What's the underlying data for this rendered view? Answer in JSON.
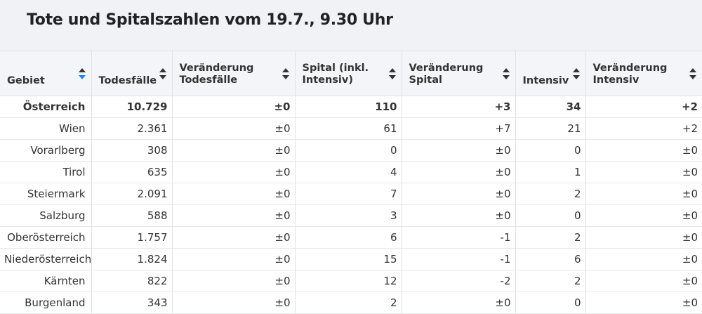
{
  "title": "Tote und Spitalszahlen vom 19.7., 9.30 Uhr",
  "table": {
    "headers": [
      {
        "line1": "Gebiet",
        "line2": "",
        "active": true
      },
      {
        "line1": "Todesfälle",
        "line2": "",
        "active": false
      },
      {
        "line1": "Veränderung",
        "line2": "Todesfälle",
        "active": false
      },
      {
        "line1": "Spital (inkl.",
        "line2": "Intensiv)",
        "active": false
      },
      {
        "line1": "Veränderung",
        "line2": "Spital",
        "active": false
      },
      {
        "line1": "Intensiv",
        "line2": "",
        "active": false
      },
      {
        "line1": "Veränderung",
        "line2": "Intensiv",
        "active": false
      }
    ],
    "rows": [
      [
        "Österreich",
        "10.729",
        "±0",
        "110",
        "+3",
        "34",
        "+2"
      ],
      [
        "Wien",
        "2.361",
        "±0",
        "61",
        "+7",
        "21",
        "+2"
      ],
      [
        "Vorarlberg",
        "308",
        "±0",
        "0",
        "±0",
        "0",
        "±0"
      ],
      [
        "Tirol",
        "635",
        "±0",
        "4",
        "±0",
        "1",
        "±0"
      ],
      [
        "Steiermark",
        "2.091",
        "±0",
        "7",
        "±0",
        "2",
        "±0"
      ],
      [
        "Salzburg",
        "588",
        "±0",
        "3",
        "±0",
        "0",
        "±0"
      ],
      [
        "Oberösterreich",
        "1.757",
        "±0",
        "6",
        "-1",
        "2",
        "±0"
      ],
      [
        "Niederösterreich",
        "1.824",
        "±0",
        "15",
        "-1",
        "6",
        "±0"
      ],
      [
        "Kärnten",
        "822",
        "±0",
        "12",
        "-2",
        "2",
        "±0"
      ],
      [
        "Burgenland",
        "343",
        "±0",
        "2",
        "±0",
        "0",
        "±0"
      ]
    ]
  },
  "colors": {
    "header_bg": "#f4f5f8",
    "sort_active": "#1e88e5",
    "text": "#333333"
  },
  "icons": {
    "sort": "sort-arrows-icon"
  }
}
